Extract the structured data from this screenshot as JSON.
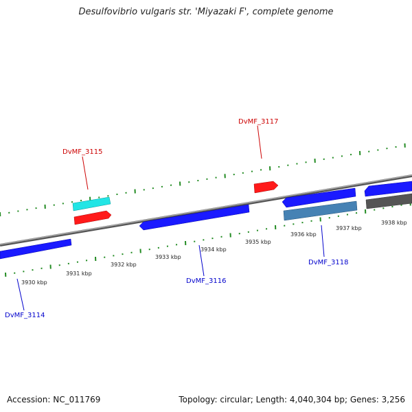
{
  "title": "Desulfovibrio vulgaris str. 'Miyazaki F', complete genome",
  "footer": {
    "accession": "Accession: NC_011769",
    "topology": "Topology: circular; Length: 4,040,304 bp; Genes: 3,256"
  },
  "colors": {
    "backbone": "#808080",
    "tick_minor": "#228b22",
    "tick_major": "#228b22",
    "gene_forward_label": "#cc0000",
    "gene_reverse_label": "#0000cc",
    "gene_blue": "#1a1aff",
    "gene_red": "#ff1a1a",
    "gene_cyan": "#22e5e5",
    "gene_steel": "#4682b4",
    "gene_gray": "#555555"
  },
  "kbp_labels": [
    "3930 kbp",
    "3931 kbp",
    "3932 kbp",
    "3933 kbp",
    "3934 kbp",
    "3935 kbp",
    "3936 kbp",
    "3937 kbp",
    "3938 kbp"
  ],
  "gene_labels": [
    {
      "id": "g3115",
      "text": "DvMF_3115",
      "strand": "forward"
    },
    {
      "id": "g3117",
      "text": "DvMF_3117",
      "strand": "forward"
    },
    {
      "id": "g3114",
      "text": "DvMF_3114",
      "strand": "reverse"
    },
    {
      "id": "g3116",
      "text": "DvMF_3116",
      "strand": "reverse"
    },
    {
      "id": "g3118",
      "text": "DvMF_3118",
      "strand": "reverse"
    }
  ]
}
